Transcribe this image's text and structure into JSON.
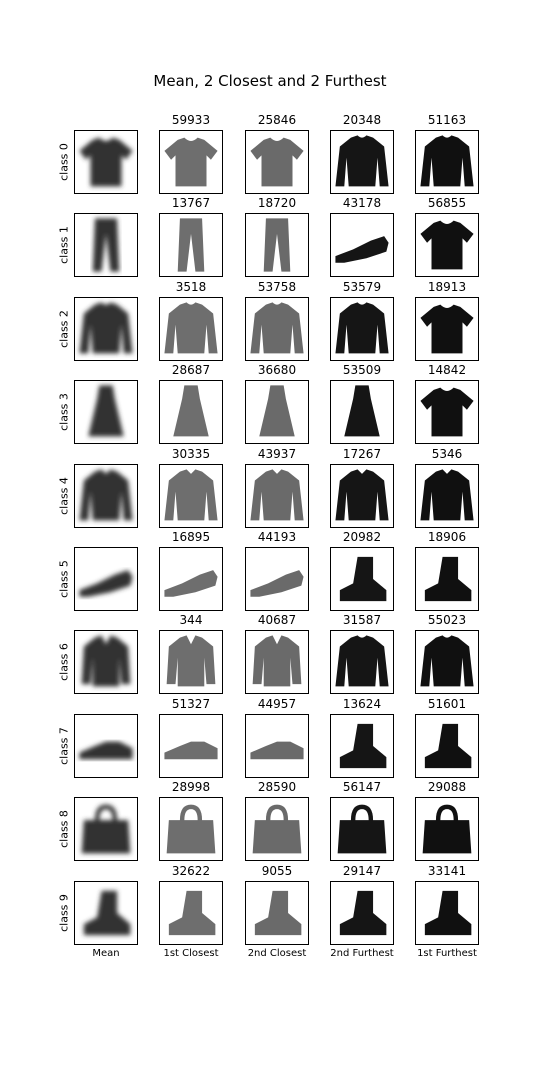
{
  "chart_data": {
    "type": "image_grid",
    "title": "Mean, 2 Closest and 2 Furthest",
    "columns": [
      "Mean",
      "1st Closest",
      "2nd Closest",
      "2nd Furthest",
      "1st Furthest"
    ],
    "rows": [
      {
        "label": "class 0",
        "ids": [
          59933,
          25846,
          20348,
          51163
        ]
      },
      {
        "label": "class 1",
        "ids": [
          13767,
          18720,
          43178,
          56855
        ]
      },
      {
        "label": "class 2",
        "ids": [
          3518,
          53758,
          53579,
          18913
        ]
      },
      {
        "label": "class 3",
        "ids": [
          28687,
          36680,
          53509,
          14842
        ]
      },
      {
        "label": "class 4",
        "ids": [
          30335,
          43937,
          17267,
          5346
        ]
      },
      {
        "label": "class 5",
        "ids": [
          16895,
          44193,
          20982,
          18906
        ]
      },
      {
        "label": "class 6",
        "ids": [
          344,
          40687,
          31587,
          55023
        ]
      },
      {
        "label": "class 7",
        "ids": [
          51327,
          44957,
          13624,
          51601
        ]
      },
      {
        "label": "class 8",
        "ids": [
          28998,
          28590,
          56147,
          29088
        ]
      },
      {
        "label": "class 9",
        "ids": [
          32622,
          9055,
          29147,
          33141
        ]
      }
    ]
  }
}
